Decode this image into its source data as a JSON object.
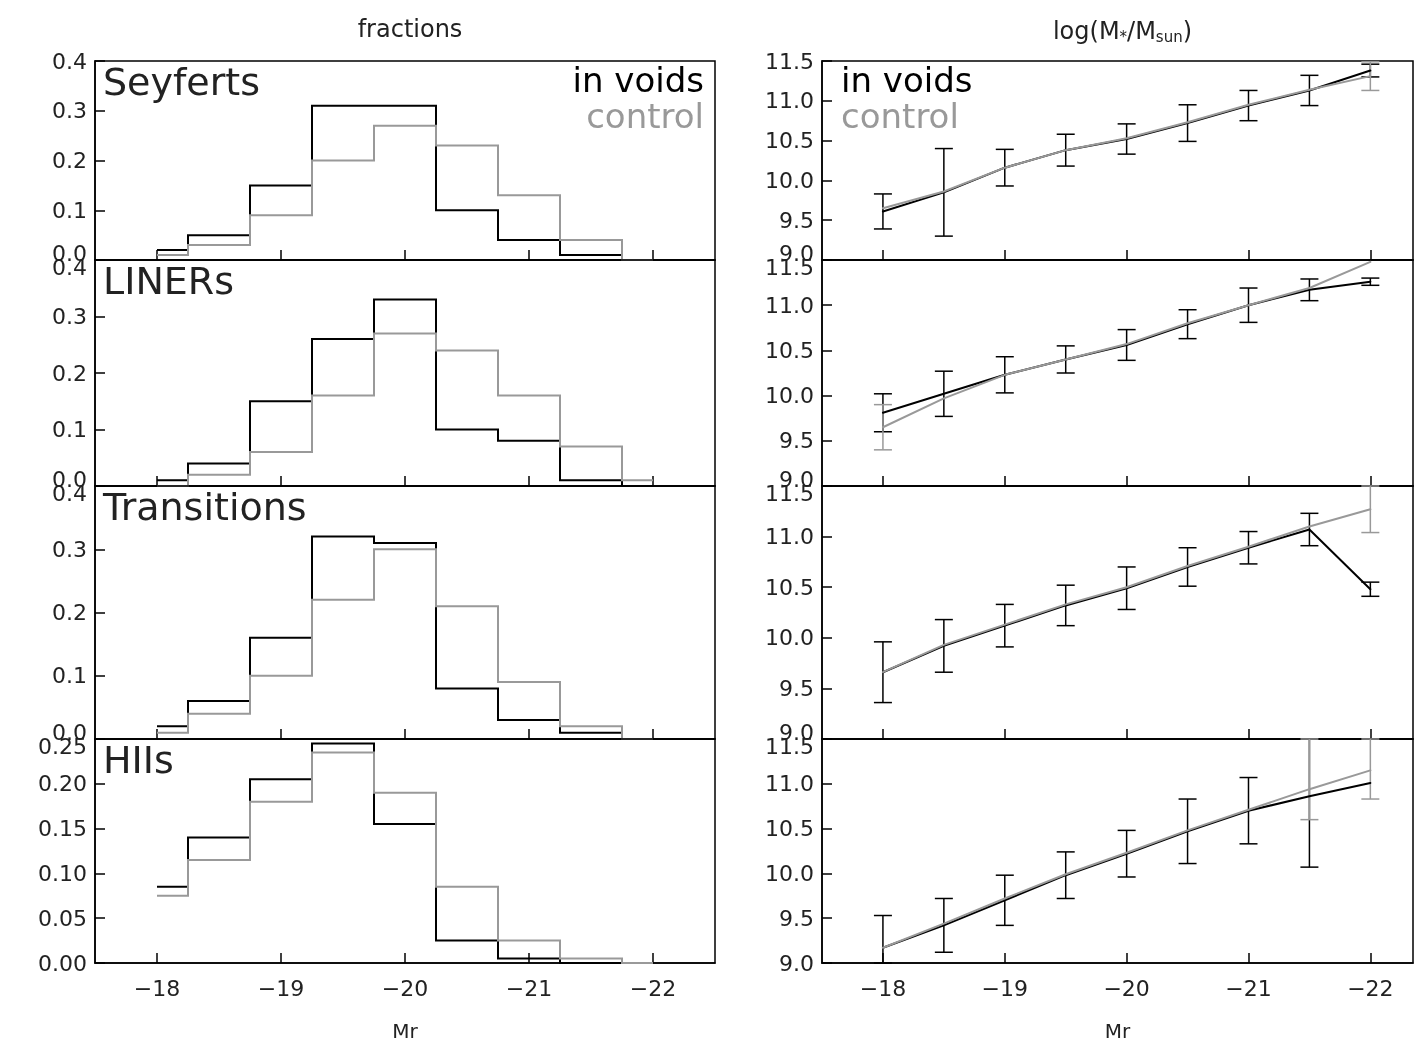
{
  "chart_data": [
    {
      "type": "histogram",
      "ylabel": "fractions",
      "annotations": [
        "Seyferts"
      ],
      "legend": "top right",
      "tick_labels": "y",
      "bins": [
        -18,
        -18.25,
        -18.75,
        -19.25,
        -19.75,
        -20.25,
        -20.75,
        -21.25,
        -21.75,
        -22
      ],
      "xlim": [
        -17.5,
        -22.5
      ],
      "xticks": [
        {
          "value": -18,
          "label": null
        },
        {
          "value": -19,
          "label": null
        },
        {
          "value": -20,
          "label": null
        },
        {
          "value": -21,
          "label": null
        },
        {
          "value": -22,
          "label": null
        }
      ],
      "ylim": [
        0,
        0.4
      ],
      "yticks": [
        {
          "value": 0,
          "label": "0.0"
        },
        0.1,
        0.2,
        0.3,
        0.4
      ],
      "series": [
        {
          "name": "in voids",
          "color": "#000000",
          "values": [
            0.02,
            0.05,
            0.15,
            0.31,
            0.31,
            0.1,
            0.04,
            0.01,
            0.0
          ]
        },
        {
          "name": "control",
          "color": "#999999",
          "values": [
            0.01,
            0.03,
            0.09,
            0.2,
            0.27,
            0.23,
            0.13,
            0.04,
            0.0
          ]
        }
      ]
    },
    {
      "type": "histogram",
      "annotations": [
        "LINERs"
      ],
      "tick_labels": "y",
      "bins": [
        -18,
        -18.25,
        -18.75,
        -19.25,
        -19.75,
        -20.25,
        -20.75,
        -21.25,
        -21.75,
        -22
      ],
      "xlim": [
        -17.5,
        -22.5
      ],
      "xticks": [
        {
          "value": -18,
          "label": null
        },
        {
          "value": -19,
          "label": null
        },
        {
          "value": -20,
          "label": null
        },
        {
          "value": -21,
          "label": null
        },
        {
          "value": -22,
          "label": null
        }
      ],
      "ylim": [
        0,
        0.4
      ],
      "yticks": [
        {
          "value": 0,
          "label": "0.0"
        },
        0.1,
        0.2,
        0.3,
        0.4
      ],
      "series": [
        {
          "color": "#000000",
          "values": [
            0.01,
            0.04,
            0.15,
            0.26,
            0.33,
            0.1,
            0.08,
            0.01,
            0.0
          ]
        },
        {
          "color": "#999999",
          "values": [
            0.0,
            0.02,
            0.06,
            0.16,
            0.27,
            0.24,
            0.16,
            0.07,
            0.01
          ]
        }
      ]
    },
    {
      "type": "histogram",
      "annotations": [
        "Transitions"
      ],
      "tick_labels": "y",
      "bins": [
        -18,
        -18.25,
        -18.75,
        -19.25,
        -19.75,
        -20.25,
        -20.75,
        -21.25,
        -21.75,
        -22
      ],
      "xlim": [
        -17.5,
        -22.5
      ],
      "xticks": [
        {
          "value": -18,
          "label": null
        },
        {
          "value": -19,
          "label": null
        },
        {
          "value": -20,
          "label": null
        },
        {
          "value": -21,
          "label": null
        },
        {
          "value": -22,
          "label": null
        }
      ],
      "ylim": [
        0,
        0.4
      ],
      "yticks": [
        {
          "value": 0,
          "label": "0.0"
        },
        0.1,
        0.2,
        0.3,
        0.4
      ],
      "series": [
        {
          "color": "#000000",
          "values": [
            0.02,
            0.06,
            0.16,
            0.32,
            0.31,
            0.08,
            0.03,
            0.01,
            0.0
          ]
        },
        {
          "color": "#999999",
          "values": [
            0.01,
            0.04,
            0.1,
            0.22,
            0.3,
            0.21,
            0.09,
            0.02,
            0.0
          ]
        }
      ]
    },
    {
      "type": "histogram",
      "annotations": [
        "HIIs"
      ],
      "xlabel": "Mr",
      "bins": [
        -18,
        -18.25,
        -18.75,
        -19.25,
        -19.75,
        -20.25,
        -20.75,
        -21.25,
        -21.75,
        -22
      ],
      "xlim": [
        -17.5,
        -22.5
      ],
      "xticks": [
        {
          "value": -18,
          "label": "−18"
        },
        {
          "value": -19,
          "label": "−19"
        },
        {
          "value": -20,
          "label": "−20"
        },
        {
          "value": -21,
          "label": "−21"
        },
        {
          "value": -22,
          "label": "−22"
        }
      ],
      "ylim": [
        0,
        0.25
      ],
      "yticks": [
        {
          "value": 0,
          "label": "0.00"
        },
        {
          "value": 0.05,
          "label": "0.05"
        },
        {
          "value": 0.1,
          "label": "0.10"
        },
        {
          "value": 0.15,
          "label": "0.15"
        },
        {
          "value": 0.2,
          "label": "0.20"
        },
        {
          "value": 0.25,
          "label": "0.25"
        }
      ],
      "series": [
        {
          "color": "#000000",
          "values": [
            0.085,
            0.14,
            0.205,
            0.245,
            0.155,
            0.025,
            0.005,
            0.0,
            0.0
          ]
        },
        {
          "color": "#999999",
          "values": [
            0.075,
            0.115,
            0.18,
            0.235,
            0.19,
            0.085,
            0.025,
            0.005,
            0.0
          ]
        }
      ]
    },
    {
      "type": "line",
      "ylabel": "log(M$_{*}$/M$_{sun}$)",
      "legend": "top left",
      "marker": "none",
      "tick_labels": "y",
      "x": [
        -18,
        -18.5,
        -19,
        -19.5,
        -20,
        -20.5,
        -21,
        -21.5,
        -22
      ],
      "xlim": [
        -17.5,
        -22.35
      ],
      "xticks": [
        {
          "value": -18,
          "label": null
        },
        {
          "value": -19,
          "label": null
        },
        {
          "value": -20,
          "label": null
        },
        {
          "value": -21,
          "label": null
        },
        {
          "value": -22,
          "label": null
        }
      ],
      "ylim": [
        9,
        11.5
      ],
      "yticks": [
        {
          "value": 9,
          "label": "9.0"
        },
        9.5,
        {
          "value": 10,
          "label": "10.0"
        },
        10.5,
        {
          "value": 11,
          "label": "11.0"
        },
        11.5
      ],
      "series": [
        {
          "name": "in voids",
          "color": "#000000",
          "values": [
            9.61,
            9.85,
            10.16,
            10.38,
            10.52,
            10.72,
            10.94,
            11.13,
            11.38
          ],
          "errors": [
            0.22,
            0.55,
            0.23,
            0.2,
            0.19,
            0.23,
            0.19,
            0.19,
            0.08
          ]
        },
        {
          "name": "control",
          "color": "#999999",
          "values": [
            9.65,
            9.86,
            10.16,
            10.38,
            10.53,
            10.73,
            10.95,
            11.14,
            11.31
          ],
          "errors": [
            null,
            null,
            null,
            null,
            null,
            null,
            null,
            null,
            0.18
          ]
        }
      ]
    },
    {
      "type": "line",
      "marker": "none",
      "tick_labels": "y",
      "x": [
        -18,
        -18.5,
        -19,
        -19.5,
        -20,
        -20.5,
        -21,
        -21.5,
        -22
      ],
      "xlim": [
        -17.5,
        -22.35
      ],
      "xticks": [
        {
          "value": -18,
          "label": null
        },
        {
          "value": -19,
          "label": null
        },
        {
          "value": -20,
          "label": null
        },
        {
          "value": -21,
          "label": null
        },
        {
          "value": -22,
          "label": null
        }
      ],
      "ylim": [
        9,
        11.5
      ],
      "yticks": [
        {
          "value": 9,
          "label": "9.0"
        },
        9.5,
        {
          "value": 10,
          "label": "10.0"
        },
        10.5,
        {
          "value": 11,
          "label": "11.0"
        },
        11.5
      ],
      "series": [
        {
          "color": "#000000",
          "values": [
            9.81,
            10.02,
            10.23,
            10.4,
            10.56,
            10.79,
            11.0,
            11.17,
            11.26
          ],
          "errors": [
            0.21,
            0.25,
            0.2,
            0.15,
            0.17,
            0.16,
            0.19,
            0.12,
            0.04
          ]
        },
        {
          "color": "#999999",
          "values": [
            9.65,
            9.97,
            10.23,
            10.4,
            10.57,
            10.8,
            11.0,
            11.19,
            11.48
          ],
          "errors": [
            0.25,
            null,
            null,
            null,
            null,
            null,
            null,
            null,
            null
          ]
        }
      ]
    },
    {
      "type": "line",
      "marker": "none",
      "tick_labels": "y",
      "x": [
        -18,
        -18.5,
        -19,
        -19.5,
        -20,
        -20.5,
        -21,
        -21.5,
        -22
      ],
      "xlim": [
        -17.5,
        -22.35
      ],
      "xticks": [
        {
          "value": -18,
          "label": null
        },
        {
          "value": -19,
          "label": null
        },
        {
          "value": -20,
          "label": null
        },
        {
          "value": -21,
          "label": null
        },
        {
          "value": -22,
          "label": null
        }
      ],
      "ylim": [
        9,
        11.5
      ],
      "yticks": [
        {
          "value": 9,
          "label": "9.0"
        },
        9.5,
        {
          "value": 10,
          "label": "10.0"
        },
        10.5,
        {
          "value": 11,
          "label": "11.0"
        },
        11.5
      ],
      "series": [
        {
          "color": "#000000",
          "values": [
            9.66,
            9.92,
            10.12,
            10.32,
            10.49,
            10.7,
            10.89,
            11.07,
            10.48
          ],
          "errors": [
            0.3,
            0.26,
            0.21,
            0.2,
            0.21,
            0.19,
            0.16,
            0.16,
            0.07
          ]
        },
        {
          "color": "#999999",
          "values": [
            9.66,
            9.93,
            10.13,
            10.33,
            10.5,
            10.71,
            10.9,
            11.1,
            11.27
          ],
          "errors": [
            null,
            null,
            null,
            null,
            null,
            null,
            null,
            null,
            0.23
          ]
        }
      ]
    },
    {
      "type": "line",
      "marker": "none",
      "xlabel": "Mr",
      "x": [
        -18,
        -18.5,
        -19,
        -19.5,
        -20,
        -20.5,
        -21,
        -21.5,
        -22
      ],
      "xlim": [
        -17.5,
        -22.35
      ],
      "xticks": [
        {
          "value": -18,
          "label": "−18"
        },
        {
          "value": -19,
          "label": "−19"
        },
        {
          "value": -20,
          "label": "−20"
        },
        {
          "value": -21,
          "label": "−21"
        },
        {
          "value": -22,
          "label": "−22"
        }
      ],
      "ylim": [
        9,
        11.5
      ],
      "yticks": [
        {
          "value": 9,
          "label": "9.0"
        },
        9.5,
        {
          "value": 10,
          "label": "10.0"
        },
        10.5,
        {
          "value": 11,
          "label": "11.0"
        },
        11.5
      ],
      "series": [
        {
          "color": "#000000",
          "values": [
            9.17,
            9.42,
            9.7,
            9.98,
            10.22,
            10.47,
            10.7,
            10.86,
            11.01
          ],
          "errors": [
            [
              9.0,
              9.53
            ],
            0.3,
            0.28,
            0.26,
            0.26,
            0.36,
            0.37,
            [
              10.07,
              11.5
            ],
            null
          ]
        },
        {
          "color": "#999999",
          "values": [
            9.17,
            9.44,
            9.72,
            9.99,
            10.23,
            10.48,
            10.71,
            10.94,
            11.15
          ],
          "errors": [
            null,
            null,
            null,
            null,
            null,
            null,
            null,
            [
              10.6,
              11.5
            ],
            [
              10.83,
              11.5
            ]
          ]
        }
      ]
    }
  ]
}
